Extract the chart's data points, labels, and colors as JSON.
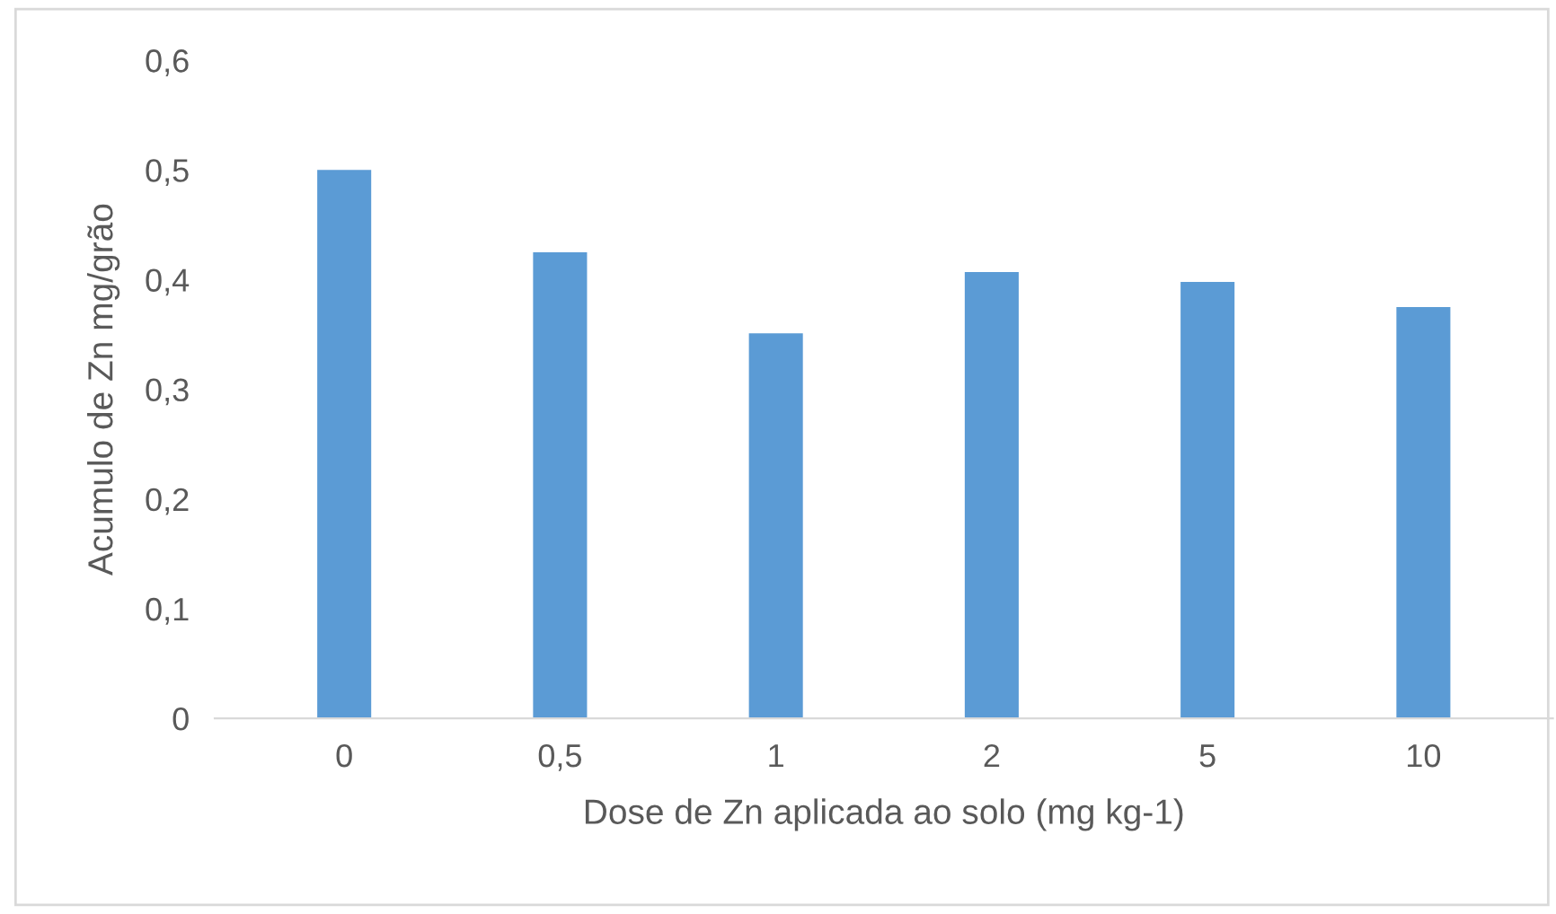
{
  "chart_data": {
    "type": "bar",
    "xlabel": "Dose de Zn aplicada ao solo (mg kg-1)",
    "ylabel": "Acumulo de Zn mg/grão",
    "categories": [
      "0",
      "0,5",
      "1",
      "2",
      "5",
      "10"
    ],
    "values": [
      0.5,
      0.425,
      0.351,
      0.407,
      0.398,
      0.375
    ],
    "color": "#5b9bd5",
    "ylim": [
      0,
      0.6
    ],
    "yticks": [
      {
        "value": 0,
        "label": "0"
      },
      {
        "value": 0.1,
        "label": "0,1"
      },
      {
        "value": 0.2,
        "label": "0,2"
      },
      {
        "value": 0.3,
        "label": "0,3"
      },
      {
        "value": 0.4,
        "label": "0,4"
      },
      {
        "value": 0.5,
        "label": "0,5"
      },
      {
        "value": 0.6,
        "label": "0,6"
      }
    ],
    "grid": false
  }
}
